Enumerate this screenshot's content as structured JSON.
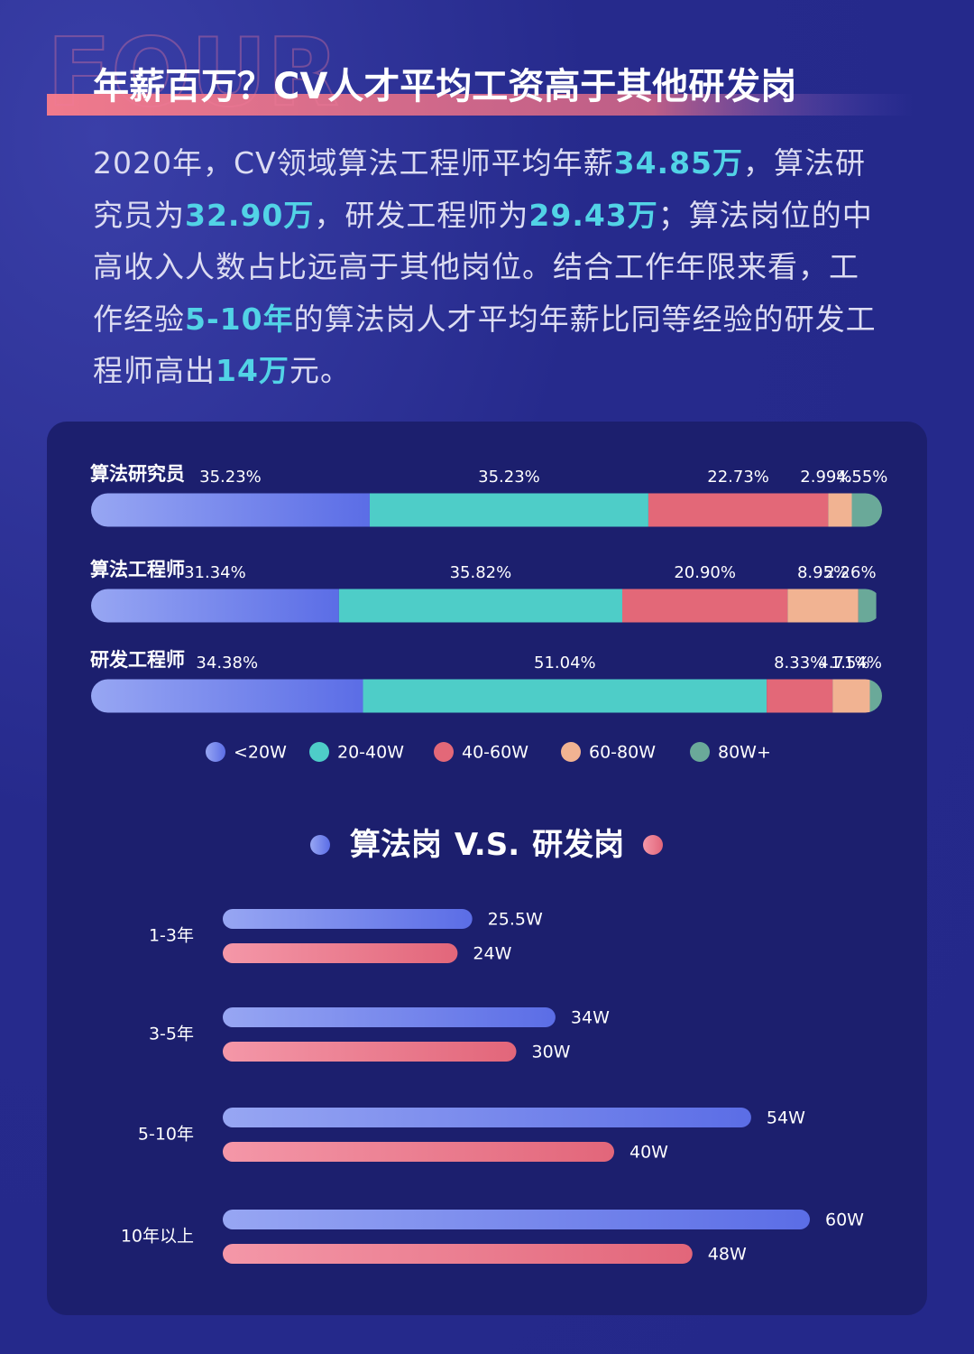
{
  "header": {
    "watermark": "FOUR",
    "title": "年薪百万？CV人才平均工资高于其他研发岗"
  },
  "paragraph": {
    "runs": [
      {
        "text": "2020年，CV领域算法工程师平均年薪"
      },
      {
        "text": "34.85万",
        "emphasis": true
      },
      {
        "text": "，算法研究员为"
      },
      {
        "text": "32.90万",
        "emphasis": true
      },
      {
        "text": "，研发工程师为"
      },
      {
        "text": "29.43万",
        "emphasis": true
      },
      {
        "text": "；算法岗位的中高收入人数占比远高于其他岗位。结合工作年限来看，工作经验"
      },
      {
        "text": "5-10年",
        "emphasis": true
      },
      {
        "text": "的算法岗人才平均年薪比同等经验的研发工程师高出"
      },
      {
        "text": "14万",
        "emphasis": true
      },
      {
        "text": "元。"
      }
    ]
  },
  "chart_data": [
    {
      "type": "bar",
      "stacked": true,
      "orientation": "horizontal",
      "categories": [
        "算法研究员",
        "算法工程师",
        "研发工程师"
      ],
      "xlim": [
        0,
        100
      ],
      "series": [
        {
          "name": "<20W",
          "color": "#6f80ea",
          "values": [
            35.23,
            31.34,
            34.38
          ],
          "value_labels": [
            "35.23%",
            "31.34%",
            "34.38%"
          ]
        },
        {
          "name": "20-40W",
          "color": "#4ecdc8",
          "values": [
            35.23,
            35.82,
            51.04
          ],
          "value_labels": [
            "35.23%",
            "35.82%",
            "51.04%"
          ]
        },
        {
          "name": "40-60W",
          "color": "#e36878",
          "values": [
            22.73,
            20.9,
            8.33
          ],
          "value_labels": [
            "22.73%",
            "20.90%",
            "8.33%"
          ]
        },
        {
          "name": "60-80W",
          "color": "#f1b392",
          "values": [
            2.99,
            8.95,
            4.71
          ],
          "value_labels": [
            "2.99%",
            "8.95%",
            "4.71%"
          ]
        },
        {
          "name": "80W+",
          "color": "#6aa999",
          "values": [
            4.55,
            2.26,
            1.54
          ],
          "value_labels": [
            "4.55%",
            "2.26%",
            "1.54%"
          ]
        }
      ]
    },
    {
      "type": "bar",
      "orientation": "horizontal",
      "legend_joiner": "V.S.",
      "categories": [
        "1-3年",
        "3-5年",
        "5-10年",
        "10年以上"
      ],
      "xlim": [
        0,
        60
      ],
      "series": [
        {
          "name": "算法岗",
          "color": "#6f80ea",
          "values": [
            25.5,
            34,
            54,
            60
          ],
          "value_labels": [
            "25.5W",
            "34W",
            "54W",
            "60W"
          ]
        },
        {
          "name": "研发岗",
          "color": "#e96f83",
          "values": [
            24,
            30,
            40,
            48
          ],
          "value_labels": [
            "24W",
            "30W",
            "40W",
            "48W"
          ]
        }
      ]
    }
  ]
}
